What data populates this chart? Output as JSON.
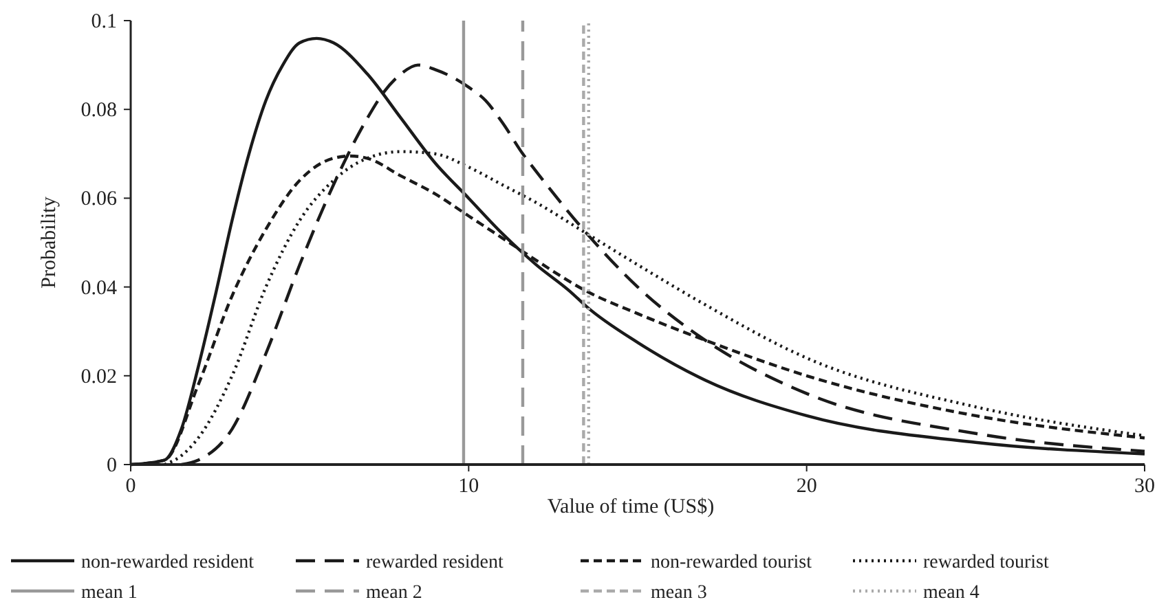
{
  "chart_data": {
    "type": "line",
    "xlabel": "Value of time (US$)",
    "ylabel": "Probability",
    "xlim": [
      0,
      30
    ],
    "ylim": [
      0,
      0.1
    ],
    "xticks": [
      0,
      10,
      20,
      30
    ],
    "yticks": [
      0,
      0.02,
      0.04,
      0.06,
      0.08,
      0.1
    ],
    "legend": "bottom",
    "grid": false,
    "marker": "none",
    "series": [
      {
        "name": "non-rewarded resident",
        "color": "#1a1a1a",
        "line_style": "solid",
        "x": [
          0,
          1,
          1.5,
          2,
          2.5,
          3,
          3.5,
          4,
          4.5,
          5,
          5.5,
          6,
          7,
          8,
          9,
          10,
          11,
          12,
          13,
          13.5,
          15,
          17,
          20,
          25,
          30
        ],
        "values": [
          0,
          0.001,
          0.008,
          0.022,
          0.038,
          0.055,
          0.07,
          0.082,
          0.09,
          0.095,
          0.096,
          0.095,
          0.088,
          0.078,
          0.068,
          0.06,
          0.052,
          0.045,
          0.039,
          0.0355,
          0.0275,
          0.019,
          0.011,
          0.005,
          0.0024
        ]
      },
      {
        "name": "rewarded resident",
        "color": "#1a1a1a",
        "line_style": "dashed",
        "x": [
          1.5,
          2,
          3,
          4,
          5,
          6,
          7,
          7.5,
          8,
          8.5,
          9,
          10,
          10.5,
          11,
          11.6,
          12,
          13.5,
          15,
          17,
          20,
          25,
          30
        ],
        "values": [
          0,
          0.001,
          0.008,
          0.025,
          0.045,
          0.063,
          0.078,
          0.084,
          0.088,
          0.09,
          0.089,
          0.085,
          0.082,
          0.077,
          0.07,
          0.066,
          0.052,
          0.04,
          0.028,
          0.016,
          0.007,
          0.003
        ]
      },
      {
        "name": "non-rewarded tourist",
        "color": "#1a1a1a",
        "line_style": "dashed",
        "x": [
          0,
          1,
          2,
          3,
          4,
          5,
          6,
          6.5,
          7,
          8,
          9,
          10,
          11,
          11.6,
          12,
          13.5,
          15,
          17,
          20,
          25,
          30
        ],
        "values": [
          0,
          0.001,
          0.018,
          0.038,
          0.053,
          0.064,
          0.069,
          0.0695,
          0.069,
          0.065,
          0.061,
          0.056,
          0.051,
          0.048,
          0.046,
          0.039,
          0.034,
          0.028,
          0.02,
          0.011,
          0.006
        ]
      },
      {
        "name": "rewarded tourist",
        "color": "#1a1a1a",
        "line_style": "dotted",
        "x": [
          1,
          1.5,
          2,
          3,
          4,
          5,
          6,
          7,
          8,
          9,
          10,
          11,
          12,
          13.5,
          15,
          17,
          20,
          25,
          30
        ],
        "values": [
          0,
          0.002,
          0.006,
          0.02,
          0.04,
          0.055,
          0.064,
          0.069,
          0.0705,
          0.07,
          0.067,
          0.063,
          0.059,
          0.052,
          0.045,
          0.036,
          0.024,
          0.013,
          0.0065
        ]
      },
      {
        "name": "mean 1",
        "color": "#999999",
        "line_style": "solid",
        "x": [
          9.85,
          9.85
        ],
        "values": [
          0,
          0.1
        ]
      },
      {
        "name": "mean 2",
        "color": "#999999",
        "line_style": "dashed",
        "x": [
          11.6,
          11.6
        ],
        "values": [
          0,
          0.1
        ]
      },
      {
        "name": "mean 3",
        "color": "#aaaaaa",
        "line_style": "dashed",
        "x": [
          13.4,
          13.4
        ],
        "values": [
          0,
          0.1
        ]
      },
      {
        "name": "mean 4",
        "color": "#aaaaaa",
        "line_style": "dotted",
        "x": [
          13.55,
          13.55
        ],
        "values": [
          0,
          0.1
        ]
      }
    ]
  }
}
